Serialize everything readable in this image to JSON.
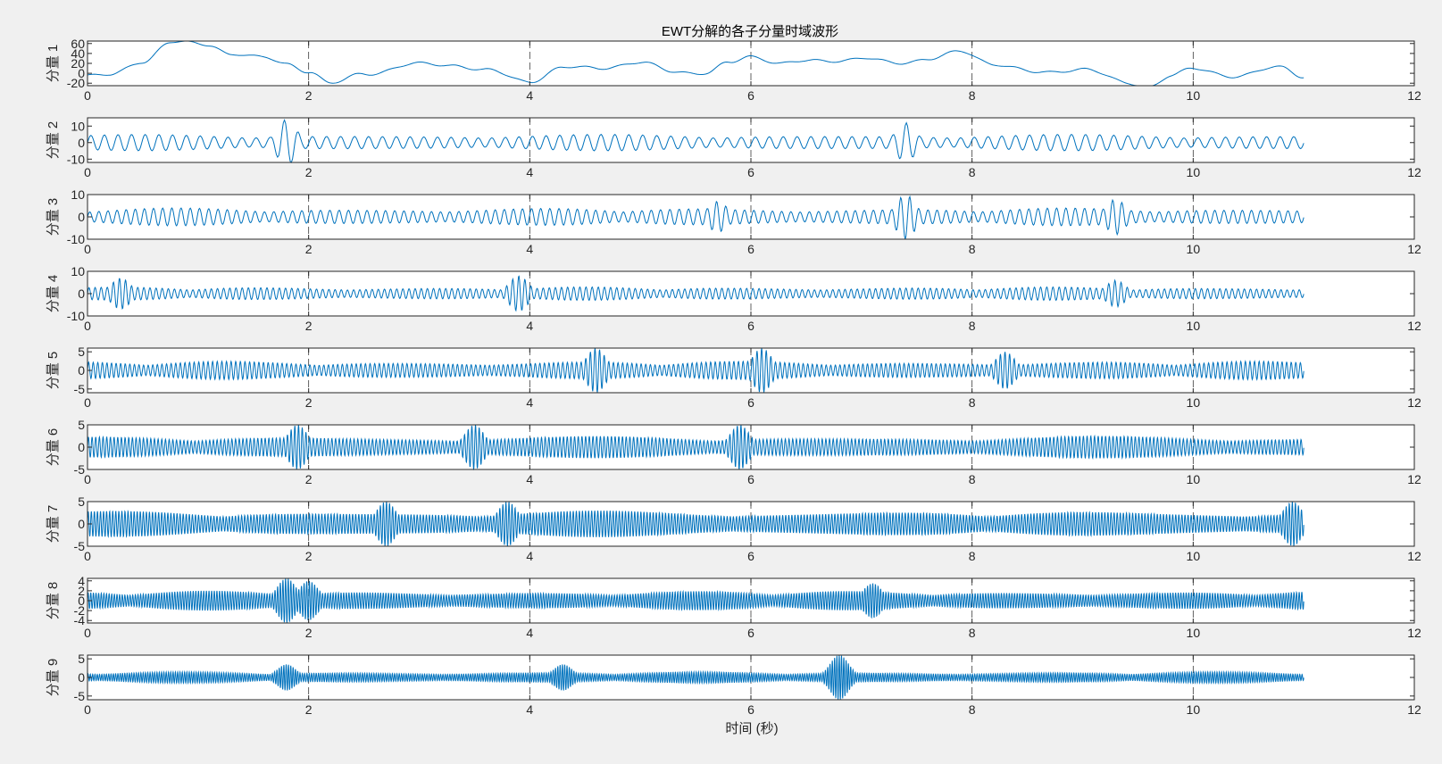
{
  "figure": {
    "title": "EWT分解的各子分量时域波形",
    "xlabel": "时间 (秒)"
  },
  "colors": {
    "background": "#f0f0f0",
    "axes_background": "#ffffff",
    "line": "#0072bd",
    "axis": "#262626",
    "grid": "#262626"
  },
  "chart_data": [
    {
      "type": "line",
      "ylabel": "分量 1",
      "xlim": [
        0,
        12
      ],
      "ylim": [
        -25,
        65
      ],
      "xticks": [
        0,
        2,
        4,
        6,
        8,
        10,
        12
      ],
      "yticks": [
        -20,
        0,
        20,
        40,
        60
      ],
      "x_end": 11,
      "waveform": {
        "kind": "trend",
        "amplitude_range": [
          -25,
          62
        ],
        "shape_points": [
          [
            0,
            -5
          ],
          [
            0.2,
            -5
          ],
          [
            0.5,
            25
          ],
          [
            0.75,
            62
          ],
          [
            1.1,
            58
          ],
          [
            1.3,
            40
          ],
          [
            1.6,
            30
          ],
          [
            1.8,
            20
          ],
          [
            2.0,
            5
          ],
          [
            2.2,
            -22
          ],
          [
            2.5,
            0
          ],
          [
            3.0,
            18
          ],
          [
            3.3,
            18
          ],
          [
            3.6,
            5
          ],
          [
            4.0,
            -15
          ],
          [
            4.3,
            10
          ],
          [
            4.6,
            12
          ],
          [
            5.0,
            20
          ],
          [
            5.3,
            5
          ],
          [
            5.6,
            0
          ],
          [
            5.8,
            20
          ],
          [
            6.0,
            35
          ],
          [
            6.3,
            20
          ],
          [
            6.6,
            25
          ],
          [
            7.0,
            30
          ],
          [
            7.3,
            20
          ],
          [
            7.6,
            30
          ],
          [
            7.9,
            42
          ],
          [
            8.2,
            20
          ],
          [
            8.6,
            0
          ],
          [
            9.0,
            10
          ],
          [
            9.4,
            -20
          ],
          [
            9.6,
            -25
          ],
          [
            9.8,
            -5
          ],
          [
            10.0,
            8
          ],
          [
            10.4,
            -5
          ],
          [
            10.8,
            12
          ],
          [
            11.0,
            -5
          ]
        ]
      }
    },
    {
      "type": "line",
      "ylabel": "分量 2",
      "xlim": [
        0,
        12
      ],
      "ylim": [
        -12,
        15
      ],
      "xticks": [
        0,
        2,
        4,
        6,
        8,
        10,
        12
      ],
      "yticks": [
        -10,
        0,
        10
      ],
      "x_end": 11,
      "waveform": {
        "kind": "oscillation",
        "cycles_per_second": 8,
        "typical_amplitude": 5,
        "bursts": [
          [
            1.8,
            14
          ],
          [
            7.4,
            12
          ]
        ]
      }
    },
    {
      "type": "line",
      "ylabel": "分量 3",
      "xlim": [
        0,
        12
      ],
      "ylim": [
        -10,
        10
      ],
      "xticks": [
        0,
        2,
        4,
        6,
        8,
        10,
        12
      ],
      "yticks": [
        -10,
        0,
        10
      ],
      "x_end": 11,
      "waveform": {
        "kind": "oscillation",
        "cycles_per_second": 12,
        "typical_amplitude": 4,
        "bursts": [
          [
            7.4,
            10
          ],
          [
            9.3,
            8
          ],
          [
            5.7,
            7
          ]
        ]
      }
    },
    {
      "type": "line",
      "ylabel": "分量 4",
      "xlim": [
        0,
        12
      ],
      "ylim": [
        -10,
        10
      ],
      "xticks": [
        0,
        2,
        4,
        6,
        8,
        10,
        12
      ],
      "yticks": [
        -10,
        0,
        10
      ],
      "x_end": 11,
      "waveform": {
        "kind": "oscillation",
        "cycles_per_second": 18,
        "typical_amplitude": 3,
        "bursts": [
          [
            0.3,
            7
          ],
          [
            3.9,
            8
          ],
          [
            9.3,
            6
          ]
        ]
      }
    },
    {
      "type": "line",
      "ylabel": "分量 5",
      "xlim": [
        0,
        12
      ],
      "ylim": [
        -6,
        6
      ],
      "xticks": [
        0,
        2,
        4,
        6,
        8,
        10,
        12
      ],
      "yticks": [
        -5,
        0,
        5
      ],
      "x_end": 11,
      "waveform": {
        "kind": "oscillation",
        "cycles_per_second": 24,
        "typical_amplitude": 2.5,
        "bursts": [
          [
            4.6,
            6
          ],
          [
            6.1,
            6
          ],
          [
            8.3,
            5
          ]
        ]
      }
    },
    {
      "type": "line",
      "ylabel": "分量 6",
      "xlim": [
        0,
        12
      ],
      "ylim": [
        -5,
        5
      ],
      "xticks": [
        0,
        2,
        4,
        6,
        8,
        10,
        12
      ],
      "yticks": [
        -5,
        0,
        5
      ],
      "x_end": 11,
      "waveform": {
        "kind": "oscillation",
        "cycles_per_second": 30,
        "typical_amplitude": 2.5,
        "bursts": [
          [
            1.9,
            5
          ],
          [
            3.5,
            5
          ],
          [
            5.9,
            5
          ]
        ]
      }
    },
    {
      "type": "line",
      "ylabel": "分量 7",
      "xlim": [
        0,
        12
      ],
      "ylim": [
        -5,
        5
      ],
      "xticks": [
        0,
        2,
        4,
        6,
        8,
        10,
        12
      ],
      "yticks": [
        -5,
        0,
        5
      ],
      "x_end": 11,
      "waveform": {
        "kind": "oscillation",
        "cycles_per_second": 36,
        "typical_amplitude": 3,
        "bursts": [
          [
            2.7,
            5
          ],
          [
            3.8,
            5
          ],
          [
            10.9,
            5
          ]
        ]
      }
    },
    {
      "type": "line",
      "ylabel": "分量 8",
      "xlim": [
        0,
        12
      ],
      "ylim": [
        -4.5,
        4.5
      ],
      "xticks": [
        0,
        2,
        4,
        6,
        8,
        10,
        12
      ],
      "yticks": [
        -4,
        -2,
        0,
        2,
        4
      ],
      "x_end": 11,
      "waveform": {
        "kind": "oscillation",
        "cycles_per_second": 42,
        "typical_amplitude": 2,
        "bursts": [
          [
            1.8,
            4.5
          ],
          [
            2.0,
            4
          ],
          [
            7.1,
            3.5
          ]
        ]
      }
    },
    {
      "type": "line",
      "ylabel": "分量 9",
      "xlim": [
        0,
        12
      ],
      "ylim": [
        -6,
        6
      ],
      "xticks": [
        0,
        2,
        4,
        6,
        8,
        10,
        12
      ],
      "yticks": [
        -5,
        0,
        5
      ],
      "x_end": 11,
      "waveform": {
        "kind": "oscillation",
        "cycles_per_second": 48,
        "typical_amplitude": 1.5,
        "bursts": [
          [
            6.8,
            6
          ],
          [
            1.8,
            3.5
          ],
          [
            4.3,
            3.5
          ]
        ]
      }
    }
  ]
}
